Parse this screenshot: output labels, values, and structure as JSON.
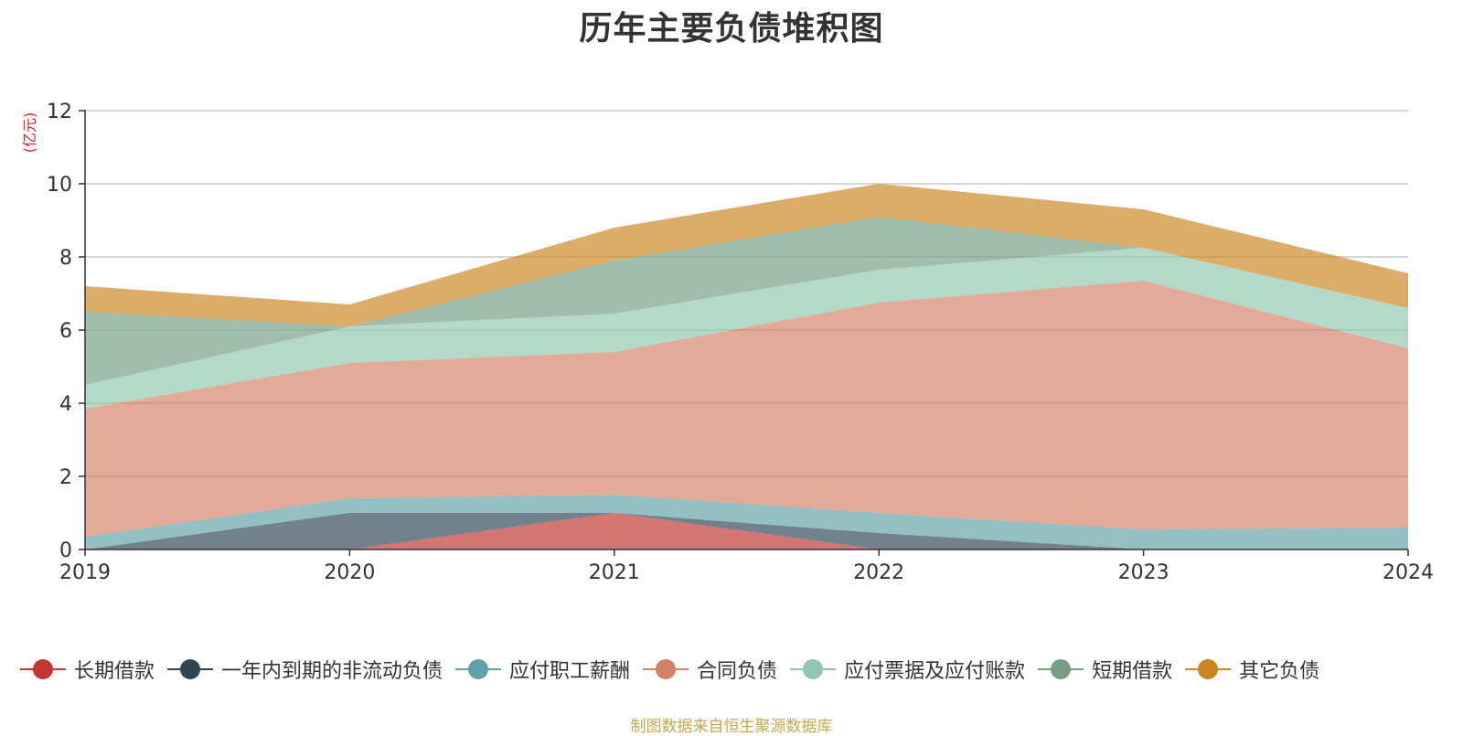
{
  "chart_data": {
    "type": "area",
    "stacked": true,
    "title": "历年主要负债堆积图",
    "ylabel": "(亿元)",
    "xlabel": "",
    "ylim": [
      0,
      12
    ],
    "yticks": [
      0,
      2,
      4,
      6,
      8,
      10,
      12
    ],
    "categories": [
      "2019",
      "2020",
      "2021",
      "2022",
      "2023",
      "2024"
    ],
    "grid": true,
    "legend_position": "bottom",
    "series": [
      {
        "name": "长期借款",
        "color": "#c23531",
        "values": [
          0,
          0,
          1.0,
          0,
          0,
          0
        ]
      },
      {
        "name": "一年内到期的非流动负债",
        "color": "#2f4554",
        "values": [
          0,
          1.0,
          0,
          0.45,
          0,
          0
        ]
      },
      {
        "name": "应付职工薪酬",
        "color": "#61a0a8",
        "values": [
          0.35,
          0.4,
          0.5,
          0.55,
          0.55,
          0.6
        ]
      },
      {
        "name": "合同负债",
        "color": "#d48265",
        "values": [
          3.5,
          3.7,
          3.9,
          5.75,
          6.8,
          4.9
        ]
      },
      {
        "name": "应付票据及应付账款",
        "color": "#91c7ae",
        "values": [
          0.65,
          1.0,
          1.05,
          0.9,
          0.9,
          1.1
        ]
      },
      {
        "name": "短期借款",
        "color": "#749f83",
        "values": [
          2.0,
          0,
          1.45,
          1.45,
          0,
          0
        ]
      },
      {
        "name": "其它负债",
        "color": "#ca8622",
        "values": [
          0.7,
          0.6,
          0.9,
          0.9,
          1.05,
          0.95
        ]
      }
    ]
  },
  "source_text": "制图数据来自恒生聚源数据库"
}
